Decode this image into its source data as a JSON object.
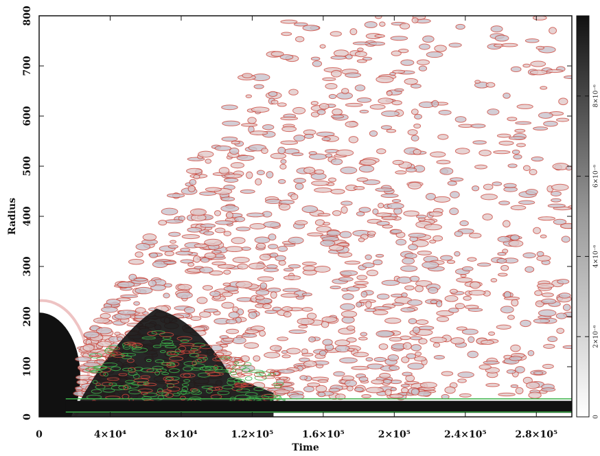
{
  "chart_data": {
    "type": "heatmap",
    "x_label": "Time",
    "y_label": "Radius",
    "xlim": [
      0,
      300000
    ],
    "ylim": [
      0,
      800
    ],
    "xticks": [
      0,
      {
        "value": 40000,
        "label": "4×10⁴"
      },
      {
        "value": 80000,
        "label": "8×10⁴"
      },
      {
        "value": 120000,
        "label": "1.2×10⁵"
      },
      {
        "value": 160000,
        "label": "1.6×10⁵"
      },
      {
        "value": 200000,
        "label": "2×10⁵"
      },
      {
        "value": 240000,
        "label": "2.4×10⁵"
      },
      {
        "value": 280000,
        "label": "2.8×10⁵"
      }
    ],
    "yticks": [
      0,
      100,
      200,
      300,
      400,
      500,
      600,
      700,
      800
    ],
    "colorbar": {
      "lim": [
        0,
        1e-05
      ],
      "ticks": [
        0,
        {
          "value": 2e-06,
          "label": "2×10⁻⁶"
        },
        {
          "value": 4e-06,
          "label": "4×10⁻⁶"
        },
        {
          "value": 6e-06,
          "label": "6×10⁻⁶"
        },
        {
          "value": 8e-06,
          "label": "8×10⁻⁶"
        }
      ]
    }
  }
}
